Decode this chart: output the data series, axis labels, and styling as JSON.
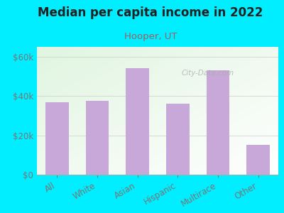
{
  "title": "Median per capita income in 2022",
  "subtitle": "Hooper, UT",
  "categories": [
    "All",
    "White",
    "Asian",
    "Hispanic",
    "Multirace",
    "Other"
  ],
  "values": [
    37000,
    37500,
    54000,
    36000,
    53000,
    15000
  ],
  "bar_color": "#c8a8d8",
  "background_outer": "#00eeff",
  "title_color": "#222222",
  "subtitle_color": "#9b6060",
  "tick_color": "#777777",
  "ylim": [
    0,
    65000
  ],
  "yticks": [
    0,
    20000,
    40000,
    60000
  ],
  "ytick_labels": [
    "$0",
    "$20k",
    "$40k",
    "$60k"
  ],
  "watermark": "City-Data.com"
}
